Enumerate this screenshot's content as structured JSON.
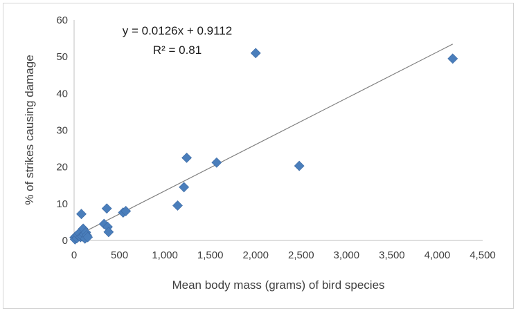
{
  "chart_data": {
    "type": "scatter",
    "xlabel": "Mean body mass (grams) of bird species",
    "ylabel": "% of strikes causing damage",
    "xlim": [
      0,
      4500
    ],
    "ylim": [
      0,
      60
    ],
    "x_ticks": [
      "0",
      "500",
      "1,000",
      "1,500",
      "2,000",
      "2,500",
      "3,000",
      "3,500",
      "4,000",
      "4,500"
    ],
    "y_ticks": [
      "0",
      "10",
      "20",
      "30",
      "40",
      "50",
      "60"
    ],
    "grid": false,
    "legend": "none",
    "marker_color": "#4a7ebb",
    "trendline_color": "#808080",
    "trendline": {
      "slope": 0.0126,
      "intercept": 0.9112,
      "x_range": [
        0,
        4170
      ]
    },
    "equation_label": "y = 0.0126x + 0.9112",
    "r2_label": "R² = 0.81",
    "points": [
      {
        "x": 5,
        "y": 0.8
      },
      {
        "x": 10,
        "y": 0.3
      },
      {
        "x": 20,
        "y": 1.2
      },
      {
        "x": 30,
        "y": 0.6
      },
      {
        "x": 40,
        "y": 1.5
      },
      {
        "x": 55,
        "y": 2.0
      },
      {
        "x": 70,
        "y": 0.9
      },
      {
        "x": 80,
        "y": 7.2
      },
      {
        "x": 90,
        "y": 1.1
      },
      {
        "x": 100,
        "y": 3.2
      },
      {
        "x": 110,
        "y": 1.6
      },
      {
        "x": 120,
        "y": 0.5
      },
      {
        "x": 130,
        "y": 2.2
      },
      {
        "x": 140,
        "y": 1.4
      },
      {
        "x": 150,
        "y": 0.9
      },
      {
        "x": 330,
        "y": 4.5
      },
      {
        "x": 360,
        "y": 8.7
      },
      {
        "x": 370,
        "y": 3.7
      },
      {
        "x": 380,
        "y": 2.3
      },
      {
        "x": 540,
        "y": 7.6
      },
      {
        "x": 570,
        "y": 8.0
      },
      {
        "x": 1140,
        "y": 9.5
      },
      {
        "x": 1210,
        "y": 14.5
      },
      {
        "x": 1240,
        "y": 22.5
      },
      {
        "x": 1570,
        "y": 21.2
      },
      {
        "x": 2000,
        "y": 51.0
      },
      {
        "x": 2480,
        "y": 20.3
      },
      {
        "x": 4170,
        "y": 49.5
      }
    ]
  }
}
